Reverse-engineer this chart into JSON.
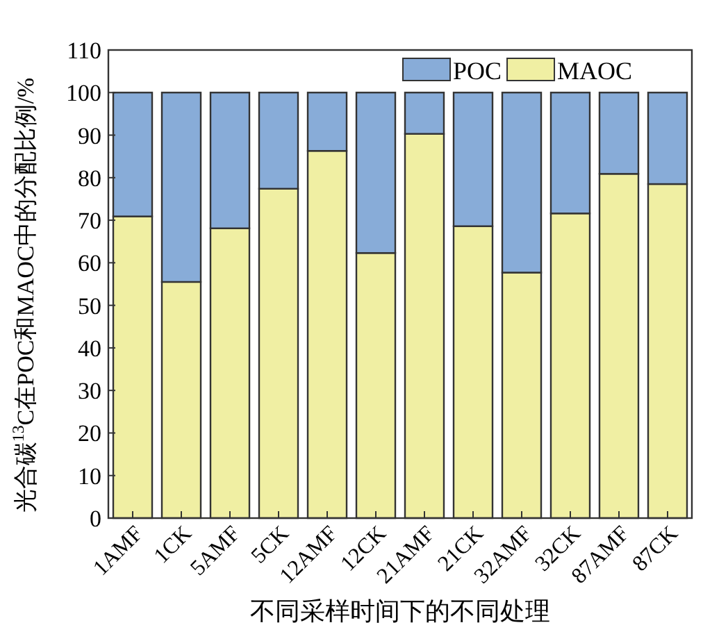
{
  "chart_data": {
    "type": "bar",
    "stacked": true,
    "xlabel": "不同采样时间下的不同处理",
    "ylabel": "光合碳$^{13}$C在POC和MAOC中的分配比例/%",
    "categories": [
      "1AMF",
      "1CK",
      "5AMF",
      "5CK",
      "12AMF",
      "12CK",
      "21AMF",
      "21CK",
      "32AMF",
      "32CK",
      "87AMF",
      "87CK"
    ],
    "series": [
      {
        "name": "MAOC",
        "color": "#f0efa3",
        "values": [
          70.9,
          55.5,
          68.1,
          77.4,
          86.3,
          62.3,
          90.3,
          68.6,
          57.7,
          71.6,
          80.9,
          78.5
        ]
      },
      {
        "name": "POC",
        "color": "#88acd8",
        "values": [
          29.1,
          44.5,
          31.9,
          22.6,
          13.7,
          37.7,
          9.7,
          31.4,
          42.3,
          28.4,
          19.1,
          21.5
        ]
      }
    ],
    "ylim": [
      0,
      110
    ],
    "yticks": [
      0,
      10,
      20,
      30,
      40,
      50,
      60,
      70,
      80,
      90,
      100,
      110
    ],
    "legend": "top right"
  }
}
